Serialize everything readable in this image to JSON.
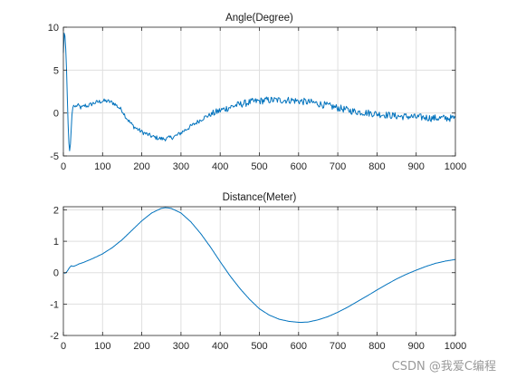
{
  "chart_data": [
    {
      "type": "line",
      "title": "Angle(Degree)",
      "xlim": [
        0,
        1000
      ],
      "ylim": [
        -5,
        10
      ],
      "xticks": [
        0,
        100,
        200,
        300,
        400,
        500,
        600,
        700,
        800,
        900,
        1000
      ],
      "yticks": [
        -5,
        0,
        5,
        10
      ],
      "grid": true,
      "color": "#0072bd",
      "series": [
        {
          "noise": 0.32,
          "x": [
            0,
            2,
            4,
            6,
            8,
            10,
            12,
            14,
            16,
            18,
            20,
            22,
            24,
            26,
            28,
            30,
            35,
            40,
            45,
            50,
            55,
            60,
            70,
            80,
            90,
            100,
            110,
            120,
            130,
            140,
            150,
            160,
            170,
            180,
            190,
            200,
            210,
            220,
            230,
            240,
            250,
            260,
            270,
            280,
            290,
            300,
            320,
            340,
            360,
            380,
            400,
            420,
            440,
            460,
            480,
            500,
            520,
            540,
            560,
            580,
            600,
            620,
            640,
            660,
            680,
            700,
            720,
            740,
            760,
            780,
            800,
            820,
            840,
            860,
            880,
            900,
            920,
            940,
            960,
            980,
            1000
          ],
          "y": [
            7.0,
            9.3,
            9.0,
            7.5,
            5.0,
            2.0,
            -1.2,
            -3.5,
            -4.4,
            -3.6,
            -1.8,
            -0.2,
            0.6,
            0.9,
            0.8,
            0.7,
            0.9,
            0.8,
            0.6,
            0.7,
            0.9,
            0.8,
            1.0,
            1.2,
            1.3,
            1.4,
            1.4,
            1.3,
            1.1,
            0.7,
            0.3,
            -0.5,
            -1.1,
            -1.6,
            -1.9,
            -2.2,
            -2.4,
            -2.6,
            -2.8,
            -2.9,
            -3.0,
            -3.0,
            -2.9,
            -2.8,
            -2.6,
            -2.3,
            -1.7,
            -1.1,
            -0.5,
            -0.1,
            0.3,
            0.6,
            0.9,
            1.1,
            1.3,
            1.4,
            1.5,
            1.5,
            1.5,
            1.5,
            1.4,
            1.3,
            1.2,
            1.0,
            0.8,
            0.6,
            0.4,
            0.2,
            0.1,
            0.0,
            -0.1,
            -0.2,
            -0.3,
            -0.4,
            -0.4,
            -0.5,
            -0.5,
            -0.6,
            -0.6,
            -0.6,
            -0.6
          ]
        }
      ]
    },
    {
      "type": "line",
      "title": "Distance(Meter)",
      "xlim": [
        0,
        1000
      ],
      "ylim": [
        -2,
        2.1
      ],
      "xticks": [
        0,
        100,
        200,
        300,
        400,
        500,
        600,
        700,
        800,
        900,
        1000
      ],
      "yticks": [
        -2,
        -1,
        0,
        1,
        2
      ],
      "grid": true,
      "color": "#0072bd",
      "series": [
        {
          "noise": 0,
          "x": [
            0,
            5,
            10,
            15,
            20,
            25,
            30,
            40,
            50,
            75,
            100,
            125,
            150,
            175,
            200,
            225,
            250,
            260,
            275,
            300,
            325,
            350,
            375,
            400,
            425,
            450,
            475,
            500,
            525,
            550,
            575,
            600,
            610,
            625,
            650,
            675,
            700,
            725,
            750,
            775,
            800,
            825,
            850,
            875,
            900,
            925,
            950,
            975,
            1000
          ],
          "y": [
            0.0,
            -0.02,
            0.05,
            0.15,
            0.22,
            0.2,
            0.22,
            0.28,
            0.32,
            0.45,
            0.6,
            0.8,
            1.05,
            1.35,
            1.65,
            1.9,
            2.05,
            2.07,
            2.05,
            1.9,
            1.62,
            1.25,
            0.82,
            0.35,
            -0.1,
            -0.5,
            -0.85,
            -1.15,
            -1.35,
            -1.48,
            -1.55,
            -1.58,
            -1.58,
            -1.57,
            -1.5,
            -1.4,
            -1.26,
            -1.1,
            -0.92,
            -0.74,
            -0.55,
            -0.37,
            -0.2,
            -0.05,
            0.08,
            0.2,
            0.3,
            0.37,
            0.42
          ]
        }
      ]
    }
  ],
  "watermark": "CSDN @我爱C编程"
}
